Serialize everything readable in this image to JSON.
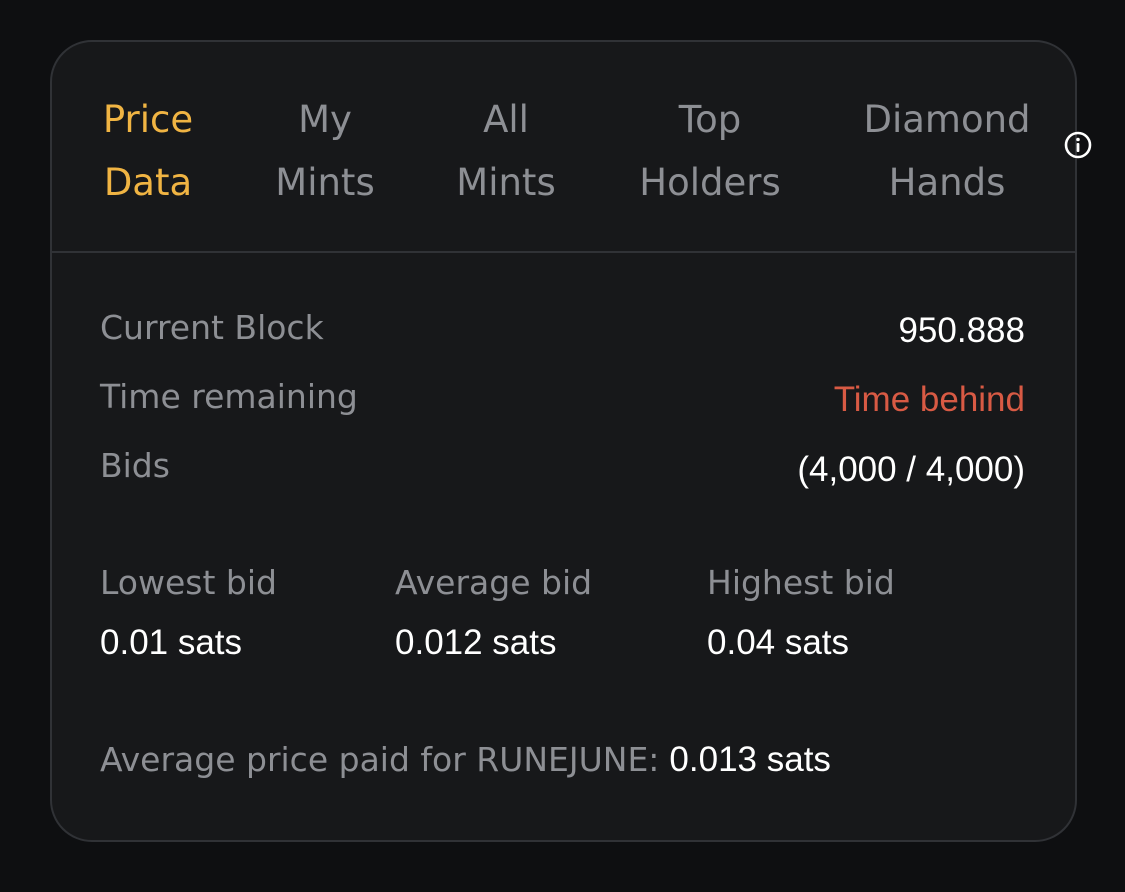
{
  "tabs": [
    {
      "lines": [
        "Price",
        "Data"
      ],
      "active": true
    },
    {
      "lines": [
        "My",
        "Mints"
      ],
      "active": false
    },
    {
      "lines": [
        "All",
        "Mints"
      ],
      "active": false
    },
    {
      "lines": [
        "Top",
        "Holders"
      ],
      "active": false
    },
    {
      "lines": [
        "Diamond",
        "Hands"
      ],
      "active": false
    }
  ],
  "rows": [
    {
      "label": "Current Block",
      "value": "950.888",
      "alert": false
    },
    {
      "label": "Time remaining",
      "value": "Time behind",
      "alert": true
    },
    {
      "label": "Bids",
      "value": "(4,000 / 4,000)",
      "alert": false
    }
  ],
  "stats": [
    {
      "label": "Lowest bid",
      "value": "0.01 sats"
    },
    {
      "label": "Average bid",
      "value": "0.012 sats"
    },
    {
      "label": "Highest bid",
      "value": "0.04 sats"
    }
  ],
  "footer": {
    "label": "Average price paid for RUNEJUNE:",
    "value": "0.013 sats"
  }
}
